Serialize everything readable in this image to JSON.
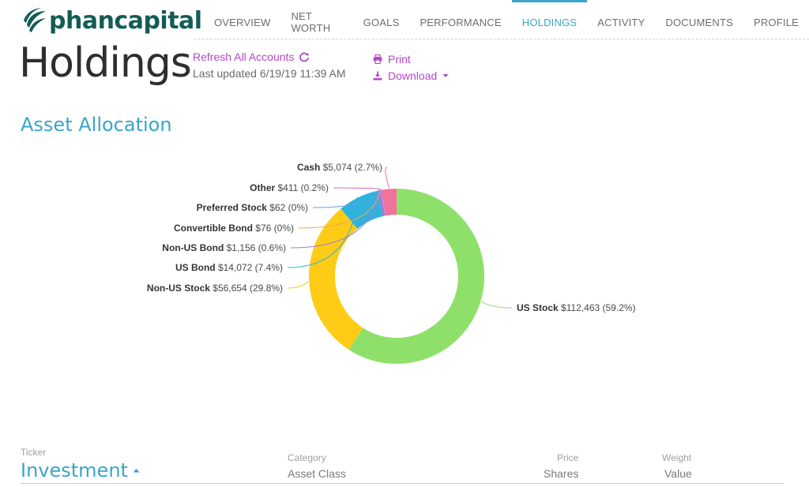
{
  "brand": {
    "name": "phancapital",
    "color": "#145c56"
  },
  "nav": {
    "items": [
      {
        "label": "OVERVIEW"
      },
      {
        "label": "NET WORTH"
      },
      {
        "label": "GOALS"
      },
      {
        "label": "PERFORMANCE"
      },
      {
        "label": "HOLDINGS",
        "active": true
      },
      {
        "label": "ACTIVITY"
      },
      {
        "label": "DOCUMENTS"
      },
      {
        "label": "PROFILE"
      }
    ]
  },
  "page": {
    "title": "Holdings",
    "refresh_label": "Refresh All Accounts",
    "last_updated": "Last updated 6/19/19 11:39 AM",
    "print_label": "Print",
    "download_label": "Download"
  },
  "section": {
    "title": "Asset Allocation"
  },
  "chart_data": {
    "type": "pie",
    "style": "donut",
    "slices": [
      {
        "name": "US Stock",
        "value": 112463,
        "value_label": "$112,463",
        "pct_label": "(59.2%)",
        "pct": 59.2,
        "color": "#8fe06b"
      },
      {
        "name": "Non-US Stock",
        "value": 56654,
        "value_label": "$56,654",
        "pct_label": "(29.8%)",
        "pct": 29.8,
        "color": "#fecc17"
      },
      {
        "name": "US Bond",
        "value": 14072,
        "value_label": "$14,072",
        "pct_label": "(7.4%)",
        "pct": 7.4,
        "color": "#2fb2dc"
      },
      {
        "name": "Non-US Bond",
        "value": 1156,
        "value_label": "$1,156",
        "pct_label": "(0.6%)",
        "pct": 0.6,
        "color": "#9d7ad9"
      },
      {
        "name": "Convertible Bond",
        "value": 76,
        "value_label": "$76",
        "pct_label": "(0%)",
        "pct": 0.04,
        "color": "#f0a45a"
      },
      {
        "name": "Preferred Stock",
        "value": 62,
        "value_label": "$62",
        "pct_label": "(0%)",
        "pct": 0.03,
        "color": "#6aa0e6"
      },
      {
        "name": "Other",
        "value": 411,
        "value_label": "$411",
        "pct_label": "(0.2%)",
        "pct": 0.2,
        "color": "#d26ac5"
      },
      {
        "name": "Cash",
        "value": 5074,
        "value_label": "$5,074",
        "pct_label": "(2.7%)",
        "pct": 2.7,
        "color": "#f3729a"
      }
    ]
  },
  "table": {
    "col1_small": "Ticker",
    "col1_main": "Investment",
    "col2_small": "Category",
    "col2_main": "Asset Class",
    "col3_small": "Price",
    "col3_main": "Shares",
    "col4_small": "Weight",
    "col4_main": "Value"
  }
}
